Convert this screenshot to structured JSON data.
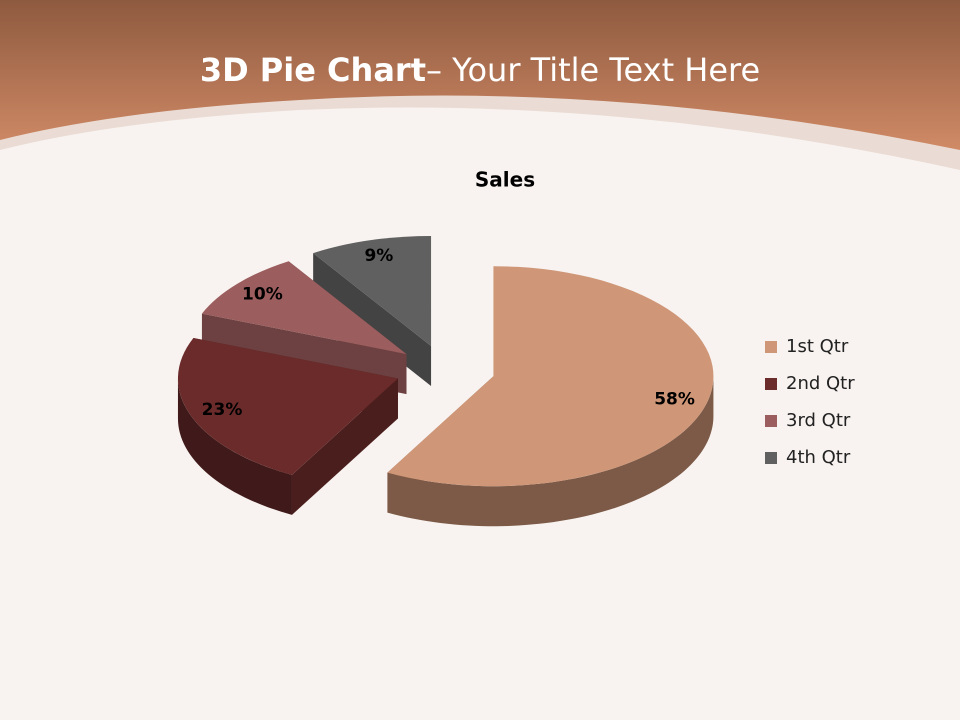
{
  "slide_title": {
    "bold": "3D Pie Chart",
    "rest": "– Your Title Text Here"
  },
  "chart_data": {
    "type": "pie",
    "title": "Sales",
    "categories": [
      "1st Qtr",
      "2nd Qtr",
      "3rd Qtr",
      "4th Qtr"
    ],
    "values": [
      58,
      23,
      10,
      9
    ],
    "value_labels": [
      "58%",
      "23%",
      "10%",
      "9%"
    ],
    "colors": [
      "#cf9677",
      "#6b2b2b",
      "#9b5d5d",
      "#606060"
    ],
    "legend": "right"
  }
}
